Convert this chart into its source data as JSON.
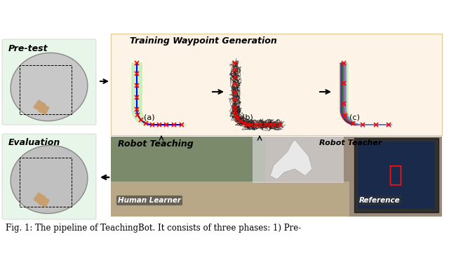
{
  "title": "Fig. 1: The pipeline of TeachingBot. It consists of three phases: 1) Pre-",
  "caption": "Fig. 1: The pipeline of TeachingBot. It consists of three phases: 1) Pre-",
  "bg_color": "#ffffff",
  "top_left_label": "Pre-test",
  "bottom_left_label": "Evaluation",
  "top_center_label": "Training Waypoint Generation",
  "bottom_center_label": "Robot Teaching",
  "sub_labels": [
    "(a)",
    "(b)",
    "(c)"
  ],
  "photo_labels": [
    "Robot Teacher",
    "Human Learner",
    "Reference"
  ],
  "pretest_bg": "#e8f5e9",
  "eval_bg": "#e8f5e9",
  "waypoint_bg": "#fdf3e7",
  "green_fill": "#90ee90",
  "blue_line": "#0000ff",
  "red_marker": "#ff0000",
  "black_line": "#000000"
}
